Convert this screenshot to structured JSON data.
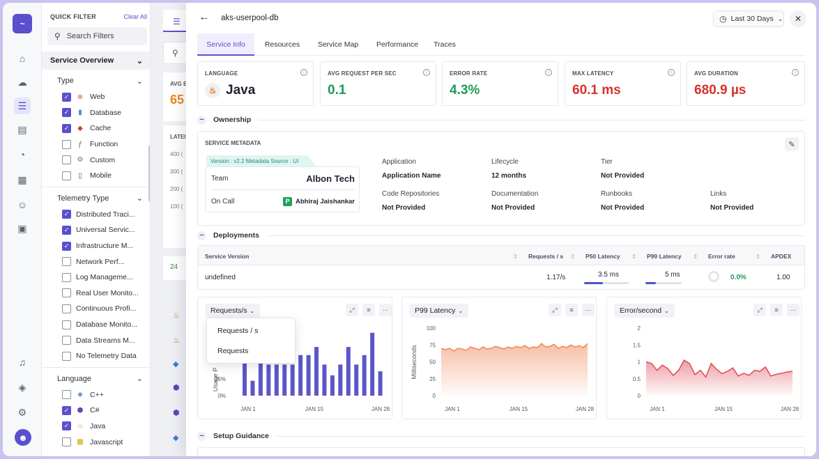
{
  "rail": {
    "items": [
      "home-icon",
      "cloud-icon",
      "list-icon",
      "document-icon",
      "alert-icon",
      "dashboard-icon",
      "robot-icon",
      "reports-icon"
    ],
    "bottom": [
      "headset-icon",
      "package-icon",
      "gear-icon"
    ]
  },
  "filter": {
    "title": "QUICK FILTER",
    "clear_label": "Clear All",
    "search_placeholder": "Search Filters",
    "section_label": "Service Overview",
    "groups": [
      {
        "label": "Type",
        "options": [
          {
            "label": "Web",
            "checked": true,
            "icon": "globe-icon",
            "color": "#e04a6a"
          },
          {
            "label": "Database",
            "checked": true,
            "icon": "database-icon",
            "color": "#3a8ee6"
          },
          {
            "label": "Cache",
            "checked": true,
            "icon": "cache-icon",
            "color": "#d93a32"
          },
          {
            "label": "Function",
            "checked": false,
            "icon": "function-icon",
            "color": "#555"
          },
          {
            "label": "Custom",
            "checked": false,
            "icon": "custom-icon",
            "color": "#777"
          },
          {
            "label": "Mobile",
            "checked": false,
            "icon": "mobile-icon",
            "color": "#555"
          }
        ]
      },
      {
        "label": "Telemetry Type",
        "options": [
          {
            "label": "Distributed Traci...",
            "checked": true
          },
          {
            "label": "Universal Servic...",
            "checked": true
          },
          {
            "label": "Infrastructure M...",
            "checked": true
          },
          {
            "label": "Network Perf...",
            "checked": false
          },
          {
            "label": "Log Manageme...",
            "checked": false
          },
          {
            "label": "Real User Monito...",
            "checked": false
          },
          {
            "label": "Continuous Profi...",
            "checked": false
          },
          {
            "label": "Database Monito...",
            "checked": false
          },
          {
            "label": "Data Streams M...",
            "checked": false
          },
          {
            "label": "No Telemetry Data",
            "checked": false
          }
        ]
      },
      {
        "label": "Language",
        "options": [
          {
            "label": "C++",
            "checked": false,
            "icon": "cpp-icon",
            "color": "#3a7bd5"
          },
          {
            "label": "C#",
            "checked": true,
            "icon": "csharp-icon",
            "color": "#6a3fb8"
          },
          {
            "label": "Java",
            "checked": true,
            "icon": "java-icon",
            "color": "#e76f00"
          },
          {
            "label": "Javascript",
            "checked": false,
            "icon": "javascript-icon",
            "color": "#c9a800"
          }
        ]
      }
    ]
  },
  "background": {
    "avg_label": "AVG E",
    "avg_value": "65",
    "lat_label": "LATEI",
    "ticks": [
      "400 (",
      "300 (",
      "200 (",
      "100 ("
    ],
    "count": "24"
  },
  "panel": {
    "title": "aks-userpool-db",
    "range_label": "Last 30 Days",
    "tabs": [
      "Service Info",
      "Resources",
      "Service Map",
      "Performance",
      "Traces"
    ],
    "active_tab": 0,
    "cards": [
      {
        "label": "LANGUAGE",
        "value": "Java",
        "color": "#1f2430"
      },
      {
        "label": "AVG REQUEST PER SEC",
        "value": "0.1",
        "color": "#1f9a58"
      },
      {
        "label": "ERROR RATE",
        "value": "4.3%",
        "color": "#1f9a58"
      },
      {
        "label": "MAX LATENCY",
        "value": "60.1 ms",
        "color": "#d9312b"
      },
      {
        "label": "AVG DURATION",
        "value": "680.9 µs",
        "color": "#d9312b"
      }
    ],
    "ownership": {
      "title": "Ownership",
      "meta_title": "SERVICE METADATA",
      "version_tag": "Version : v2.2   Metadata Source : UI",
      "team_label": "Team",
      "team_value": "Albon Tech",
      "oncall_label": "On Call",
      "oncall_initial": "P",
      "oncall_value": "Abhiraj Jaishankar",
      "fields": [
        {
          "label": "Application",
          "value": "Application Name"
        },
        {
          "label": "Lifecycle",
          "value": "12 months"
        },
        {
          "label": "Tier",
          "value": "Not Provided"
        },
        {
          "label": "Code Repositories",
          "value": "Not Provided"
        },
        {
          "label": "Documentation",
          "value": "Not Provided"
        },
        {
          "label": "Runbooks",
          "value": "Not Provided"
        },
        {
          "label": "Links",
          "value": "Not Provided"
        }
      ]
    },
    "deployments": {
      "title": "Deployments",
      "columns": [
        "Service Version",
        "Requests / s",
        "P50 Latency",
        "P99 Latency",
        "Error rate",
        "APDEX"
      ],
      "row": {
        "version": "undefined",
        "requests": "1.17/s",
        "p50": "3.5 ms",
        "p50_fill": 0.42,
        "p99": "5 ms",
        "p99_fill": 0.28,
        "error_rate": "0.0%",
        "apdex": "1.00"
      }
    },
    "setup_title": "Setup Guidance"
  },
  "charts": {
    "requests": {
      "title": "Requests/s",
      "menu": [
        "Requests / s",
        "Requests"
      ]
    },
    "p99": {
      "title": "P99 Latency"
    },
    "error": {
      "title": "Error/second"
    }
  },
  "chart_data": [
    {
      "type": "bar",
      "title": "Requests/s",
      "ylabel": "Usage P",
      "yticks": [
        "0%",
        "25%"
      ],
      "ylim": [
        0,
        100
      ],
      "xticks": [
        "JAN 1",
        "JAN 15",
        "JAN 28"
      ],
      "values": [
        55,
        22,
        70,
        46,
        46,
        46,
        46,
        60,
        60,
        72,
        46,
        30,
        46,
        72,
        46,
        60,
        93,
        36
      ],
      "color": "#5b57c8"
    },
    {
      "type": "area",
      "title": "P99 Latency",
      "ylabel": "Milliseconds",
      "yticks": [
        "0",
        "25",
        "50",
        "75",
        "100"
      ],
      "ylim": [
        0,
        100
      ],
      "xticks": [
        "JAN 1",
        "JAN 15",
        "JAN 28"
      ],
      "values": [
        70,
        68,
        70,
        66,
        70,
        69,
        67,
        72,
        70,
        68,
        72,
        69,
        70,
        73,
        71,
        69,
        72,
        70,
        73,
        71,
        74,
        70,
        72,
        71,
        77,
        72,
        73,
        76,
        70,
        73,
        71,
        75,
        72,
        74,
        71,
        77
      ],
      "color": "#f08a5d"
    },
    {
      "type": "area",
      "title": "Error/second",
      "yticks": [
        "0",
        "0.5",
        "1",
        "1.5",
        "2"
      ],
      "ylim": [
        0,
        2
      ],
      "xticks": [
        "JAN 1",
        "JAN 15",
        "JAN 28"
      ],
      "values": [
        1.0,
        0.95,
        0.75,
        0.9,
        0.8,
        0.6,
        0.75,
        1.05,
        0.95,
        0.62,
        0.75,
        0.55,
        0.95,
        0.78,
        0.65,
        0.72,
        0.82,
        0.58,
        0.66,
        0.6,
        0.75,
        0.72,
        0.85,
        0.58,
        0.63,
        0.66,
        0.7,
        0.72
      ],
      "color": "#e0505a"
    }
  ]
}
